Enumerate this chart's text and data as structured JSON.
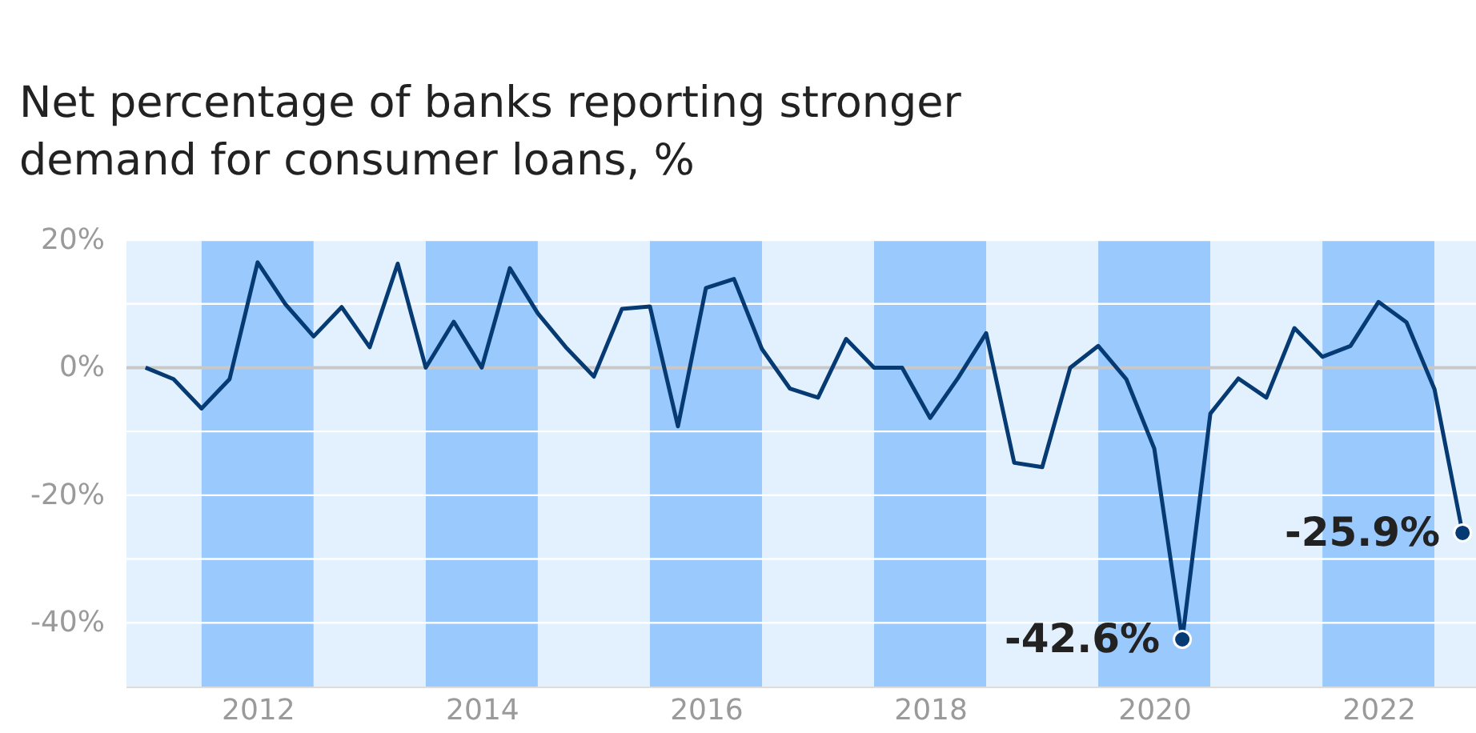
{
  "chart_data": {
    "type": "line",
    "title": "Net percentage of banks reporting stronger\ndemand for consumer loans, %",
    "x": [
      2011.5,
      2011.75,
      2012,
      2012.25,
      2012.5,
      2012.75,
      2013,
      2013.25,
      2013.5,
      2013.75,
      2014,
      2014.25,
      2014.5,
      2014.75,
      2015,
      2015.25,
      2015.5,
      2015.75,
      2016,
      2016.25,
      2016.5,
      2016.75,
      2017,
      2017.25,
      2017.5,
      2017.75,
      2018,
      2018.25,
      2018.5,
      2018.75,
      2019,
      2019.25,
      2019.5,
      2019.75,
      2020,
      2020.25,
      2020.5,
      2020.75,
      2021,
      2021.25,
      2021.5,
      2021.75,
      2022,
      2022.25,
      2022.5,
      2022.75,
      2023,
      2023.25
    ],
    "series": [
      {
        "color": "#063a73",
        "values": [
          0,
          -1.8,
          -6.4,
          -1.8,
          16.5,
          9.9,
          4.9,
          9.5,
          3.2,
          16.3,
          0,
          7.2,
          0,
          15.6,
          8.5,
          3.2,
          -1.4,
          9.2,
          9.6,
          -9.2,
          12.5,
          13.9,
          2.9,
          -3.3,
          -4.7,
          4.5,
          0,
          0,
          -7.9,
          -1.6,
          5.4,
          -14.9,
          -15.6,
          0,
          3.4,
          -1.8,
          -12.7,
          -42.6,
          -7.2,
          -1.7,
          -4.7,
          6.2,
          1.7,
          3.4,
          10.3,
          7.1,
          -3.4,
          -25.9
        ]
      }
    ],
    "xlim": [
      2011.33,
      2023.37
    ],
    "xticks": [
      {
        "value": 2012.5,
        "label": "2012"
      },
      {
        "value": 2014.5,
        "label": "2014"
      },
      {
        "value": 2016.5,
        "label": "2016"
      },
      {
        "value": 2018.5,
        "label": "2018"
      },
      {
        "value": 2020.5,
        "label": "2020"
      },
      {
        "value": 2022.5,
        "label": "2022"
      }
    ],
    "ylim": [
      -50,
      20
    ],
    "yticks": [
      {
        "value": 20,
        "label": "20%"
      },
      {
        "value": 10,
        "label": null
      },
      {
        "value": 0,
        "label": "0%"
      },
      {
        "value": -10,
        "label": null
      },
      {
        "value": -20,
        "label": "-20%"
      },
      {
        "value": -30,
        "label": null
      },
      {
        "value": -40,
        "label": "-40%"
      }
    ],
    "grid": "y",
    "line_style": "solid",
    "marker": "none",
    "ref_lines": [
      {
        "axis": "y",
        "value": 0,
        "color": "#c8c8c8"
      }
    ],
    "bands": [
      {
        "axis": "x",
        "from": 2011.33,
        "to": 2012,
        "color": "#e3f1fe"
      },
      {
        "axis": "x",
        "from": 2012,
        "to": 2013,
        "color": "#99c9fd"
      },
      {
        "axis": "x",
        "from": 2013,
        "to": 2014,
        "color": "#e3f1fe"
      },
      {
        "axis": "x",
        "from": 2014,
        "to": 2015,
        "color": "#99c9fd"
      },
      {
        "axis": "x",
        "from": 2015,
        "to": 2016,
        "color": "#e3f1fe"
      },
      {
        "axis": "x",
        "from": 2016,
        "to": 2017,
        "color": "#99c9fd"
      },
      {
        "axis": "x",
        "from": 2017,
        "to": 2018,
        "color": "#e3f1fe"
      },
      {
        "axis": "x",
        "from": 2018,
        "to": 2019,
        "color": "#99c9fd"
      },
      {
        "axis": "x",
        "from": 2019,
        "to": 2020,
        "color": "#e3f1fe"
      },
      {
        "axis": "x",
        "from": 2020,
        "to": 2021,
        "color": "#99c9fd"
      },
      {
        "axis": "x",
        "from": 2021,
        "to": 2022,
        "color": "#e3f1fe"
      },
      {
        "axis": "x",
        "from": 2022,
        "to": 2023,
        "color": "#99c9fd"
      },
      {
        "axis": "x",
        "from": 2023,
        "to": 2023.37,
        "color": "#e3f1fe"
      }
    ],
    "annotations": [
      {
        "text": "-42.6%",
        "x": 2020.75,
        "y": -42.6
      },
      {
        "text": "-25.9%",
        "x": 2023.25,
        "y": -25.9
      }
    ]
  }
}
